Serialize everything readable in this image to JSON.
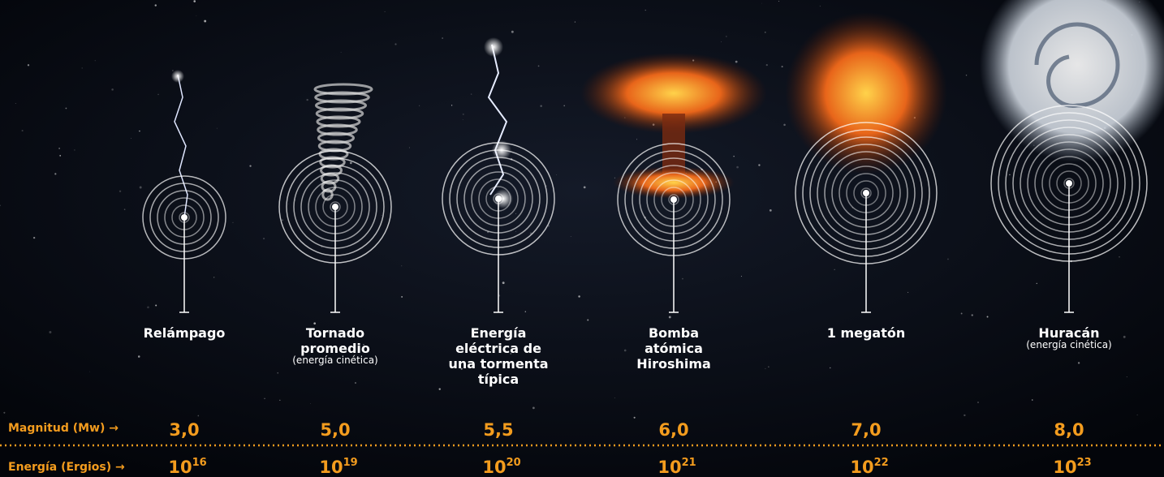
{
  "rows": {
    "magnitude": "Magnitud (Mw) →",
    "energy": "Energía (Ergios) →"
  },
  "items": [
    {
      "label": [
        "Relámpago"
      ],
      "magnitude": "3,0",
      "energy": {
        "base": "10",
        "exp": "16"
      }
    },
    {
      "label": [
        "Tornado",
        "promedio"
      ],
      "sublabel": "(energía cinética)",
      "magnitude": "5,0",
      "energy": {
        "base": "10",
        "exp": "19"
      }
    },
    {
      "label": [
        "Energía",
        "eléctrica de",
        "una tormenta",
        "típica"
      ],
      "magnitude": "5,5",
      "energy": {
        "base": "10",
        "exp": "20"
      }
    },
    {
      "label": [
        "Bomba",
        "atómica",
        "Hiroshima"
      ],
      "magnitude": "6,0",
      "energy": {
        "base": "10",
        "exp": "21"
      }
    },
    {
      "label": [
        "1 megatón"
      ],
      "magnitude": "7,0",
      "energy": {
        "base": "10",
        "exp": "22"
      }
    },
    {
      "label": [
        "Huracán"
      ],
      "sublabel": "(energía cinética)",
      "magnitude": "8,0",
      "energy": {
        "base": "10",
        "exp": "23"
      }
    }
  ]
}
